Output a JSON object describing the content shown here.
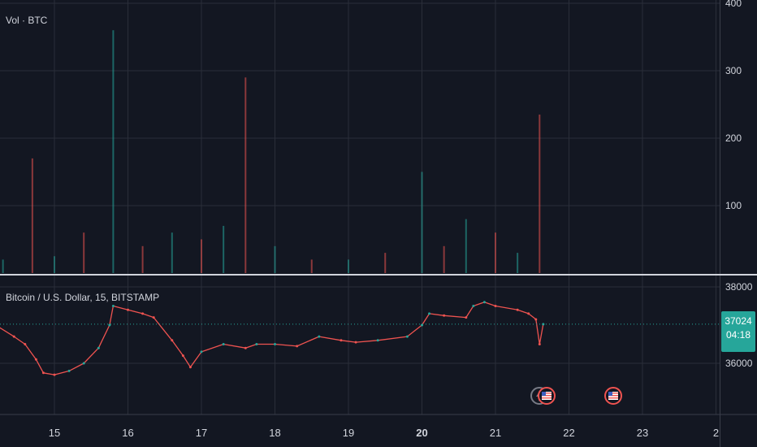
{
  "volume_pane": {
    "title": "Vol · BTC",
    "y_ticks": [
      "400",
      "300",
      "200",
      "100"
    ]
  },
  "price_pane": {
    "title": "Bitcoin / U.S. Dollar, 15, BITSTAMP",
    "y_ticks": [
      "38000",
      "36000"
    ],
    "last_price": "37024",
    "countdown": "04:18"
  },
  "x_ticks": [
    "15",
    "16",
    "17",
    "18",
    "19",
    "20",
    "21",
    "22",
    "23",
    "2"
  ],
  "colors": {
    "background": "#131722",
    "grid": "#2a2e39",
    "up": "#26a69a",
    "down": "#ef5350",
    "text": "#d1d4dc",
    "divider": "#d1d4dc"
  },
  "events": [
    {
      "name": "lightning-icon",
      "day": 21.6
    },
    {
      "name": "us-flag-icon",
      "day": 21.7
    },
    {
      "name": "us-flag-icon",
      "day": 22.6
    }
  ],
  "chart_data": [
    {
      "type": "bar",
      "title": "Vol · BTC",
      "ylim": [
        0,
        400
      ],
      "x": [
        14.3,
        14.7,
        15.0,
        15.4,
        15.8,
        16.2,
        16.6,
        17.0,
        17.3,
        17.6,
        18.0,
        18.5,
        19.0,
        19.5,
        20.0,
        20.3,
        20.6,
        21.0,
        21.3,
        21.6
      ],
      "values": [
        20,
        170,
        25,
        60,
        360,
        40,
        60,
        50,
        70,
        290,
        40,
        20,
        20,
        30,
        150,
        40,
        80,
        60,
        30,
        235
      ]
    },
    {
      "type": "line",
      "title": "Bitcoin / U.S. Dollar, 15, BITSTAMP",
      "ylim": [
        35000,
        38000
      ],
      "x": [
        14.2,
        14.45,
        14.6,
        14.75,
        14.85,
        15.0,
        15.2,
        15.4,
        15.6,
        15.75,
        15.8,
        16.0,
        16.2,
        16.35,
        16.6,
        16.75,
        16.85,
        17.0,
        17.3,
        17.6,
        17.75,
        18.0,
        18.3,
        18.6,
        18.9,
        19.1,
        19.4,
        19.8,
        20.0,
        20.1,
        20.3,
        20.6,
        20.7,
        20.85,
        21.0,
        21.3,
        21.45,
        21.55,
        21.6,
        21.65
      ],
      "values": [
        37000,
        36700,
        36500,
        36100,
        35750,
        35700,
        35800,
        36000,
        36400,
        37000,
        37500,
        37400,
        37300,
        37200,
        36600,
        36200,
        35900,
        36300,
        36500,
        36400,
        36500,
        36500,
        36450,
        36700,
        36600,
        36550,
        36600,
        36700,
        37000,
        37300,
        37250,
        37200,
        37500,
        37600,
        37500,
        37400,
        37300,
        37150,
        36500,
        37024
      ]
    }
  ]
}
